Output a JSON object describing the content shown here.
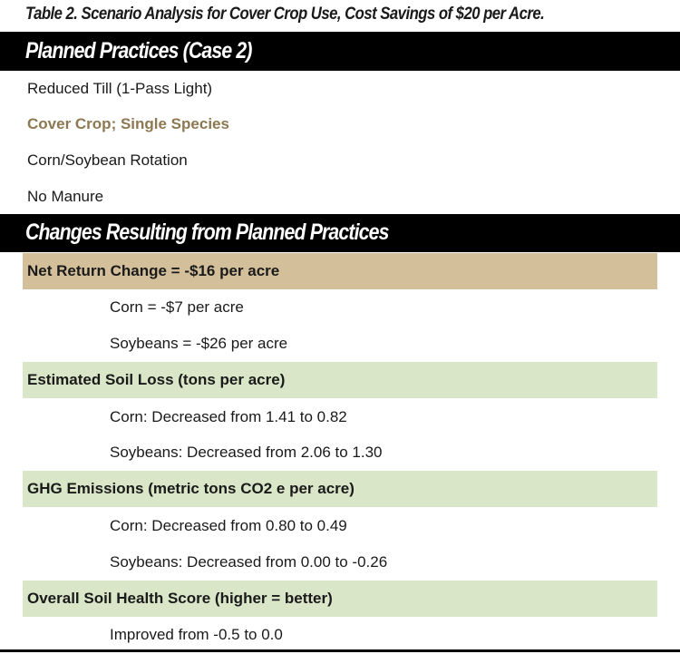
{
  "caption": "Table 2. Scenario Analysis for Cover Crop Use, Cost Savings of $20 per Acre.",
  "section1": {
    "header": "Planned Practices (Case 2)",
    "items": [
      "Reduced Till (1-Pass Light)",
      "Cover Crop; Single Species",
      "Corn/Soybean Rotation",
      "No Manure"
    ]
  },
  "section2": {
    "header": "Changes Resulting from Planned Practices",
    "groups": [
      {
        "title": "Net Return Change = -$16 per acre",
        "color": "#d3c09b",
        "rows": [
          "Corn = -$7 per acre",
          "Soybeans = -$26 per acre"
        ]
      },
      {
        "title": "Estimated Soil Loss (tons per acre)",
        "color": "#d9e6c8",
        "rows": [
          "Corn: Decreased from 1.41 to 0.82",
          "Soybeans: Decreased from 2.06 to 1.30"
        ]
      },
      {
        "title": "GHG Emissions (metric tons CO2 e per acre)",
        "color": "#d9e6c8",
        "rows": [
          "Corn: Decreased from 0.80 to 0.49",
          "Soybeans: Decreased from 0.00 to -0.26"
        ]
      },
      {
        "title": "Overall Soil Health Score (higher = better)",
        "color": "#d9e6c8",
        "rows": [
          "Improved from -0.5 to 0.0"
        ]
      }
    ]
  },
  "colors": {
    "highlight_text": "#8d7851",
    "header_bg": "#000000"
  }
}
